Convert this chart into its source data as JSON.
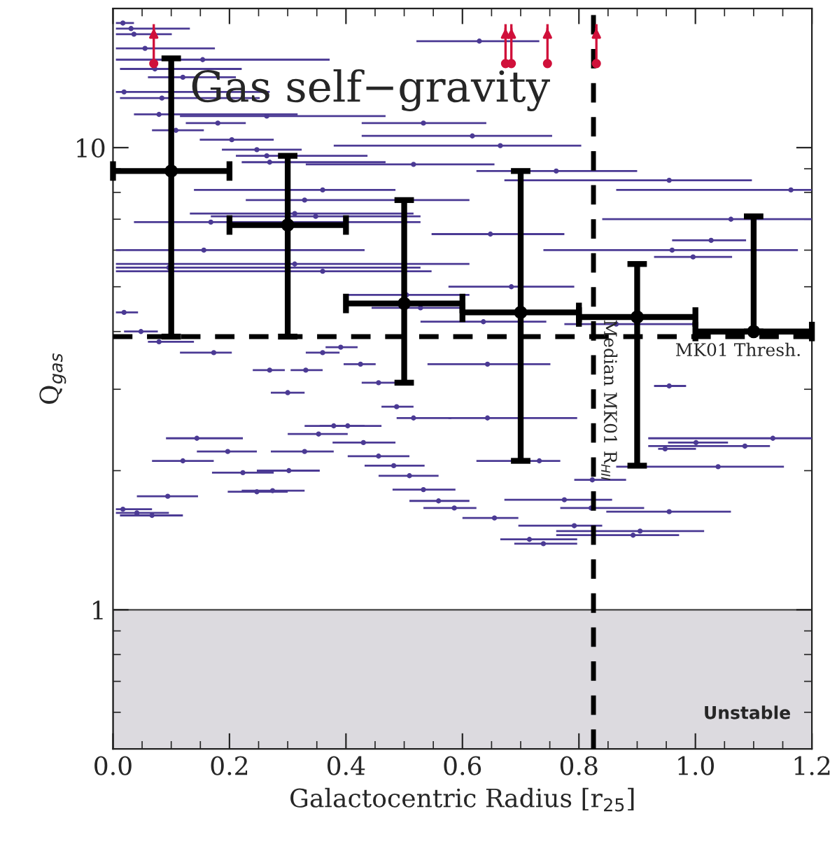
{
  "chart_data": {
    "type": "scatter",
    "xlabel": "Galactocentric Radius [r$_{25}$]",
    "ylabel": "Q$_{gas}$",
    "annotations": [
      "Gas self−gravity"
    ],
    "log": "y",
    "grid": false,
    "legend": false,
    "xlim": [
      0,
      1.2
    ],
    "xticks": [
      {
        "value": 0,
        "label": "0.0"
      },
      {
        "value": 0.2,
        "label": "0.2"
      },
      {
        "value": 0.4,
        "label": "0.4"
      },
      {
        "value": 0.6,
        "label": "0.6"
      },
      {
        "value": 0.8,
        "label": "0.8"
      },
      {
        "value": 1.0,
        "label": "1.0"
      },
      {
        "value": 1.2,
        "label": "1.2"
      }
    ],
    "ylim": [
      0.5,
      20
    ],
    "yticks": [
      1,
      10
    ],
    "ref_lines": [
      {
        "axis": "y",
        "value": 3.9,
        "label": "MK01 Thresh.",
        "color": "#000000",
        "line_style": "dashed"
      },
      {
        "axis": "x",
        "value": 0.825,
        "label": "Median MK01 R$_{HII}$",
        "color": "#000000",
        "line_style": "dashed"
      }
    ],
    "bands": [
      {
        "axis": "y",
        "from": 0.5,
        "to": 1,
        "label": "Unstable",
        "color": "#dcdadf"
      }
    ],
    "series": [
      {
        "color": "#4b3a94",
        "marker": "circle",
        "x": [
          0.017,
          0.031,
          0.036,
          0.629,
          0.055,
          0.154,
          0.072,
          0.12,
          0.019,
          0.084,
          0.079,
          0.264,
          0.533,
          0.18,
          0.108,
          0.617,
          0.204,
          0.665,
          0.247,
          0.264,
          0.269,
          0.516,
          0.761,
          0.955,
          0.36,
          1.164,
          0.329,
          0.312,
          1.061,
          0.168,
          0.648,
          1.027,
          0.96,
          0.996,
          0.156,
          0.312,
          0.096,
          0.36,
          0.019,
          0.048,
          0.079,
          0.173,
          0.36,
          0.391,
          0.269,
          0.331,
          0.425,
          0.456,
          0.3,
          0.643,
          0.487,
          0.516,
          0.643,
          0.379,
          0.403,
          0.353,
          0.144,
          0.43,
          0.197,
          0.329,
          0.456,
          0.12,
          0.482,
          0.223,
          0.302,
          0.509,
          0.533,
          0.274,
          0.247,
          0.094,
          0.559,
          0.586,
          0.017,
          0.041,
          0.067,
          0.955,
          1.133,
          1.001,
          1.085,
          0.948,
          1.039,
          0.732,
          0.823,
          0.775,
          0.821,
          0.955,
          0.655,
          0.792,
          0.905,
          0.715,
          0.739,
          0.893,
          0.348,
          0.504,
          0.528,
          0.684,
          0.636,
          0.864
        ],
        "values": [
          18.6,
          18.1,
          17.6,
          17.0,
          16.4,
          15.5,
          14.8,
          14.2,
          13.2,
          12.8,
          11.8,
          11.7,
          11.3,
          11.3,
          10.9,
          10.6,
          10.4,
          10.1,
          9.9,
          9.6,
          9.3,
          9.2,
          8.9,
          8.5,
          8.1,
          8.1,
          7.7,
          7.2,
          7.0,
          6.9,
          6.5,
          6.3,
          6.0,
          5.8,
          6.0,
          5.6,
          5.5,
          5.4,
          4.4,
          4.0,
          3.8,
          3.6,
          3.6,
          3.7,
          3.3,
          3.3,
          3.4,
          3.1,
          2.95,
          3.4,
          2.75,
          2.6,
          2.6,
          2.5,
          2.5,
          2.4,
          2.35,
          2.3,
          2.2,
          2.2,
          2.15,
          2.1,
          2.05,
          1.98,
          2.0,
          1.95,
          1.82,
          1.81,
          1.8,
          1.76,
          1.72,
          1.66,
          1.65,
          1.62,
          1.6,
          3.05,
          2.35,
          2.3,
          2.26,
          2.23,
          2.04,
          2.1,
          1.91,
          1.73,
          1.66,
          1.63,
          1.58,
          1.52,
          1.48,
          1.42,
          1.39,
          1.45,
          7.1,
          4.8,
          4.5,
          5.0,
          4.2,
          4.15
        ],
        "xerrors": [
          [
            0.005,
            0.036
          ],
          [
            0.005,
            0.132
          ],
          [
            0.005,
            0.101
          ],
          [
            0.521,
            0.732
          ],
          [
            0.005,
            0.175
          ],
          [
            0.005,
            0.372
          ],
          [
            0.012,
            0.221
          ],
          [
            0.06,
            0.211
          ],
          [
            0.005,
            0.269
          ],
          [
            0.012,
            0.252
          ],
          [
            0.036,
            0.317
          ],
          [
            0.115,
            0.468
          ],
          [
            0.427,
            0.641
          ],
          [
            0.125,
            0.228
          ],
          [
            0.067,
            0.156
          ],
          [
            0.427,
            0.754
          ],
          [
            0.149,
            0.276
          ],
          [
            0.379,
            0.804
          ],
          [
            0.187,
            0.324
          ],
          [
            0.211,
            0.437
          ],
          [
            0.221,
            0.468
          ],
          [
            0.331,
            0.655
          ],
          [
            0.624,
            0.9
          ],
          [
            0.672,
            1.097
          ],
          [
            0.139,
            0.485
          ],
          [
            0.864,
            1.2
          ],
          [
            0.228,
            0.612
          ],
          [
            0.132,
            0.516
          ],
          [
            0.84,
            1.2
          ],
          [
            0.036,
            0.528
          ],
          [
            0.547,
            0.775
          ],
          [
            0.96,
            1.087
          ],
          [
            0.739,
            1.176
          ],
          [
            0.929,
            1.063
          ],
          [
            0.005,
            0.432
          ],
          [
            0.005,
            0.612
          ],
          [
            0.005,
            0.528
          ],
          [
            0.005,
            0.547
          ],
          [
            0.005,
            0.043
          ],
          [
            0.019,
            0.077
          ],
          [
            0.06,
            0.139
          ],
          [
            0.115,
            0.204
          ],
          [
            0.331,
            0.389
          ],
          [
            0.365,
            0.42
          ],
          [
            0.24,
            0.295
          ],
          [
            0.305,
            0.36
          ],
          [
            0.396,
            0.451
          ],
          [
            0.427,
            0.485
          ],
          [
            0.271,
            0.329
          ],
          [
            0.54,
            0.751
          ],
          [
            0.461,
            0.516
          ],
          [
            0.487,
            0.581
          ],
          [
            0.576,
            0.797
          ],
          [
            0.329,
            0.432
          ],
          [
            0.355,
            0.461
          ],
          [
            0.3,
            0.403
          ],
          [
            0.091,
            0.223
          ],
          [
            0.377,
            0.485
          ],
          [
            0.144,
            0.247
          ],
          [
            0.271,
            0.379
          ],
          [
            0.403,
            0.509
          ],
          [
            0.067,
            0.173
          ],
          [
            0.432,
            0.535
          ],
          [
            0.17,
            0.276
          ],
          [
            0.247,
            0.355
          ],
          [
            0.456,
            0.559
          ],
          [
            0.48,
            0.588
          ],
          [
            0.221,
            0.329
          ],
          [
            0.197,
            0.3
          ],
          [
            0.041,
            0.146
          ],
          [
            0.509,
            0.612
          ],
          [
            0.533,
            0.624
          ],
          [
            0.005,
            0.067
          ],
          [
            0.005,
            0.096
          ],
          [
            0.012,
            0.12
          ],
          [
            0.929,
            0.984
          ],
          [
            0.919,
            1.2
          ],
          [
            0.953,
            1.056
          ],
          [
            0.919,
            1.128
          ],
          [
            0.936,
            1.001
          ],
          [
            0.864,
            1.152
          ],
          [
            0.624,
            0.768
          ],
          [
            0.792,
            0.881
          ],
          [
            0.672,
            0.857
          ],
          [
            0.768,
            0.912
          ],
          [
            0.847,
            1.061
          ],
          [
            0.6,
            0.696
          ],
          [
            0.696,
            0.84
          ],
          [
            0.761,
            1.015
          ],
          [
            0.665,
            0.797
          ],
          [
            0.689,
            0.797
          ],
          [
            0.761,
            0.972
          ],
          [
            0.168,
            0.528
          ],
          [
            0.396,
            0.612
          ],
          [
            0.444,
            0.6
          ],
          [
            0.576,
            0.792
          ],
          [
            0.528,
            0.744
          ],
          [
            0.775,
            1.001
          ]
        ]
      },
      {
        "color": "#000000",
        "marker": "circle",
        "x": [
          0.1,
          0.3,
          0.5,
          0.7,
          0.9,
          1.1
        ],
        "values": [
          8.9,
          6.8,
          4.6,
          4.4,
          4.3,
          4.0
        ],
        "errors": [
          [
            3.9,
            15.6
          ],
          [
            3.9,
            9.6
          ],
          [
            3.1,
            7.7
          ],
          [
            2.1,
            8.9
          ],
          [
            2.05,
            5.6
          ],
          [
            4.0,
            7.1
          ]
        ],
        "xerrors": [
          [
            0.0,
            0.2
          ],
          [
            0.2,
            0.4
          ],
          [
            0.4,
            0.6
          ],
          [
            0.6,
            0.8
          ],
          [
            0.8,
            1.0
          ],
          [
            1.0,
            1.2
          ]
        ]
      },
      {
        "color": "#d0103a",
        "marker": "circle",
        "x": [
          0.07,
          0.674,
          0.684,
          0.746,
          0.83
        ],
        "values": [
          15.2,
          15.2,
          15.2,
          15.2,
          15.2
        ],
        "errors": [
          [
            15.2,
            18.5
          ],
          [
            15.2,
            18.5
          ],
          [
            15.2,
            18.5
          ],
          [
            15.2,
            18.5
          ],
          [
            15.2,
            18.5
          ]
        ]
      }
    ]
  }
}
